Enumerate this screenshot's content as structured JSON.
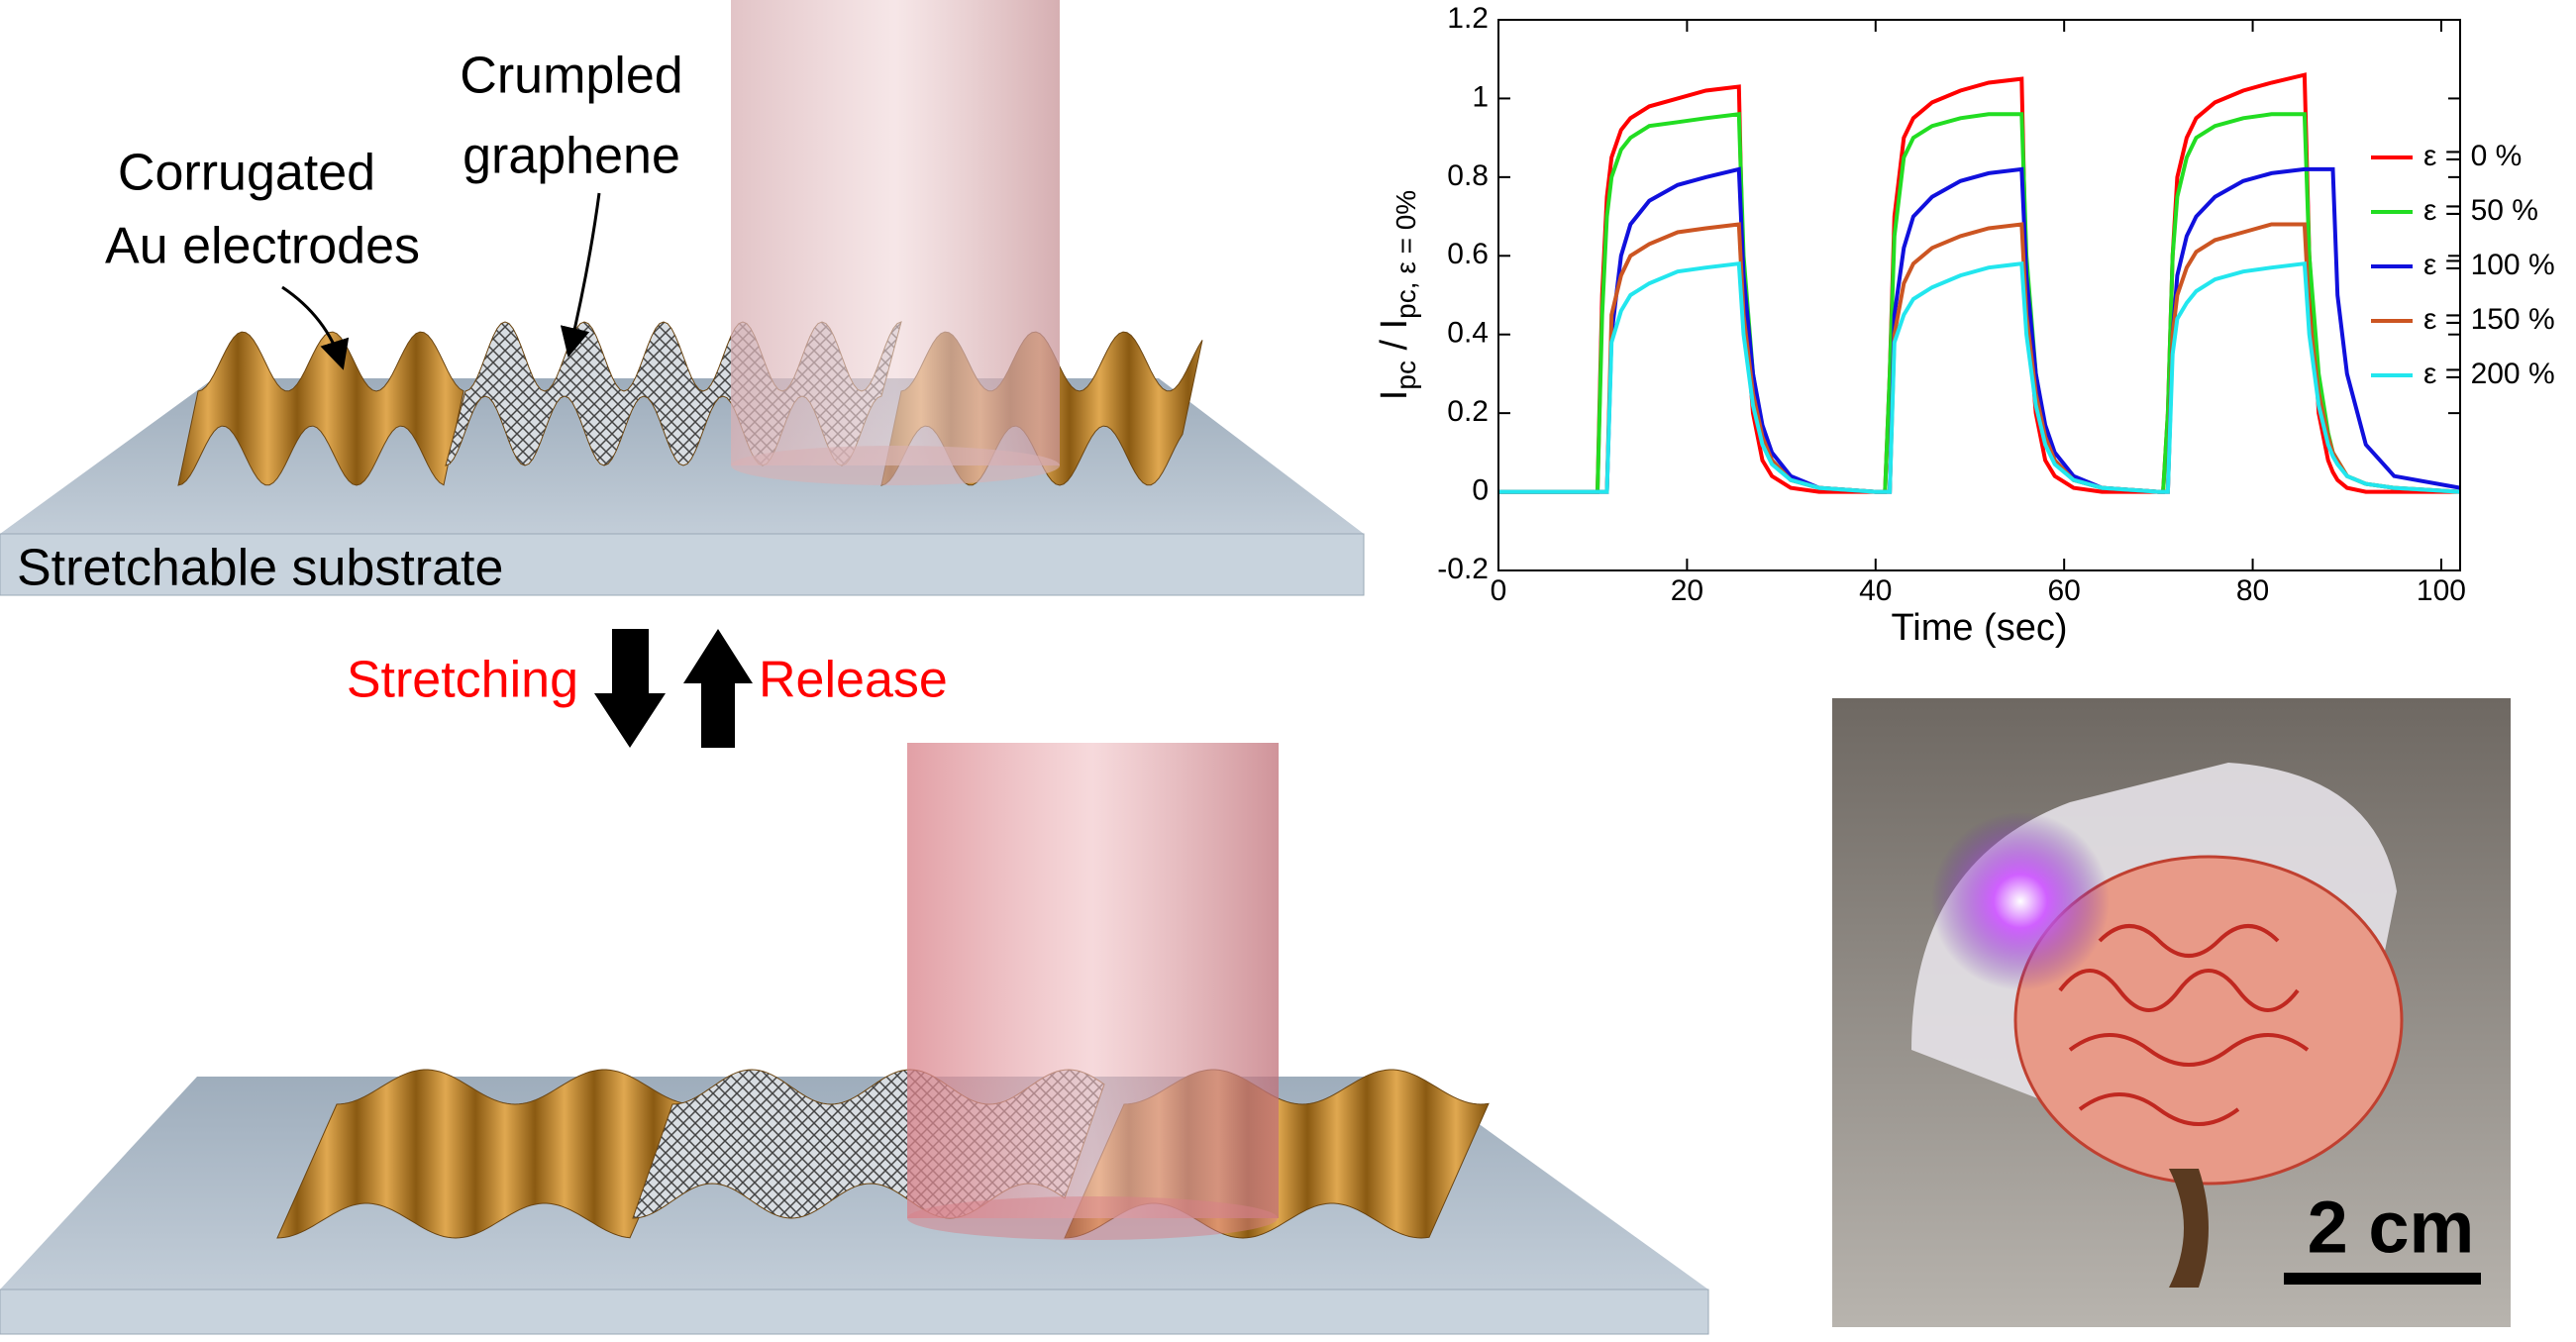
{
  "diagram": {
    "top": {
      "electrode_label": [
        "Corrugated",
        "Au electrodes"
      ],
      "graphene_label": [
        "Crumpled",
        "graphene"
      ],
      "substrate_label": "Stretchable substrate"
    },
    "transition": {
      "stretch": "Stretching",
      "release": "Release"
    }
  },
  "photo": {
    "scale_bar": "2 cm"
  },
  "chart_data": {
    "type": "line",
    "xlabel": "Time (sec)",
    "ylabel_parts": [
      "I",
      "pc",
      " / I",
      "pc, ε = 0%"
    ],
    "xlim": [
      0,
      102
    ],
    "ylim": [
      -0.2,
      1.2
    ],
    "xticks": [
      0,
      20,
      40,
      60,
      80,
      100
    ],
    "yticks": [
      -0.2,
      0,
      0.2,
      0.4,
      0.6,
      0.8,
      1,
      1.2
    ],
    "grid": false,
    "legend": "right",
    "x": [
      0,
      10,
      10.5,
      11,
      11.5,
      12,
      13,
      14,
      16,
      19,
      22,
      25.5,
      26,
      27,
      28,
      29,
      31,
      34,
      40,
      40.5,
      41,
      41.5,
      42,
      43,
      44,
      46,
      49,
      52,
      55.5,
      56,
      57,
      58,
      59,
      61,
      64,
      70,
      70.5,
      71,
      71.5,
      72,
      73,
      74,
      76,
      79,
      82,
      85.5,
      86,
      87,
      88,
      88.5,
      89,
      90,
      92,
      95,
      102
    ],
    "series": [
      {
        "name": "ε = 0 %",
        "color": "#ff0000",
        "values": [
          0,
          0,
          0,
          0.5,
          0.75,
          0.85,
          0.92,
          0.95,
          0.98,
          1.0,
          1.02,
          1.03,
          0.5,
          0.2,
          0.08,
          0.04,
          0.01,
          0,
          0,
          0,
          0,
          0.3,
          0.7,
          0.9,
          0.95,
          0.99,
          1.02,
          1.04,
          1.05,
          0.5,
          0.2,
          0.08,
          0.04,
          0.01,
          0,
          0,
          0,
          0.2,
          0.6,
          0.8,
          0.9,
          0.95,
          0.99,
          1.02,
          1.04,
          1.06,
          0.6,
          0.2,
          0.08,
          0.05,
          0.03,
          0.01,
          0,
          0,
          0
        ]
      },
      {
        "name": "ε = 50 %",
        "color": "#22dd22",
        "values": [
          0,
          0,
          0,
          0.45,
          0.7,
          0.8,
          0.87,
          0.9,
          0.93,
          0.94,
          0.95,
          0.96,
          0.6,
          0.3,
          0.15,
          0.08,
          0.03,
          0.01,
          0,
          0,
          0,
          0.3,
          0.65,
          0.85,
          0.9,
          0.93,
          0.95,
          0.96,
          0.96,
          0.6,
          0.3,
          0.15,
          0.08,
          0.03,
          0.01,
          0,
          0,
          0.2,
          0.6,
          0.75,
          0.85,
          0.9,
          0.93,
          0.95,
          0.96,
          0.96,
          0.6,
          0.3,
          0.15,
          0.1,
          0.08,
          0.04,
          0.02,
          0.01,
          0
        ]
      },
      {
        "name": "ε = 100 %",
        "color": "#1010dd",
        "values": [
          0,
          0,
          0,
          0,
          0,
          0.4,
          0.6,
          0.68,
          0.74,
          0.78,
          0.8,
          0.82,
          0.55,
          0.3,
          0.17,
          0.1,
          0.04,
          0.01,
          0,
          0,
          0,
          0,
          0.45,
          0.62,
          0.7,
          0.75,
          0.79,
          0.81,
          0.82,
          0.55,
          0.3,
          0.17,
          0.1,
          0.04,
          0.01,
          0,
          0,
          0,
          0.4,
          0.55,
          0.65,
          0.7,
          0.75,
          0.79,
          0.81,
          0.82,
          0.82,
          0.82,
          0.82,
          0.82,
          0.5,
          0.3,
          0.12,
          0.04,
          0.01
        ]
      },
      {
        "name": "ε = 150 %",
        "color": "#cc5522",
        "values": [
          0,
          0,
          0,
          0,
          0,
          0.45,
          0.55,
          0.6,
          0.63,
          0.66,
          0.67,
          0.68,
          0.45,
          0.25,
          0.14,
          0.08,
          0.03,
          0.01,
          0,
          0,
          0,
          0,
          0.4,
          0.53,
          0.58,
          0.62,
          0.65,
          0.67,
          0.68,
          0.45,
          0.25,
          0.14,
          0.08,
          0.03,
          0.01,
          0,
          0,
          0,
          0.4,
          0.5,
          0.57,
          0.61,
          0.64,
          0.66,
          0.68,
          0.68,
          0.45,
          0.25,
          0.14,
          0.1,
          0.08,
          0.04,
          0.02,
          0.01,
          0
        ]
      },
      {
        "name": "ε = 200 %",
        "color": "#22e6ee",
        "values": [
          0,
          0,
          0,
          0,
          0,
          0.38,
          0.46,
          0.5,
          0.53,
          0.56,
          0.57,
          0.58,
          0.4,
          0.22,
          0.12,
          0.07,
          0.03,
          0.01,
          0,
          0,
          0,
          0,
          0.38,
          0.45,
          0.49,
          0.52,
          0.55,
          0.57,
          0.58,
          0.4,
          0.22,
          0.12,
          0.07,
          0.03,
          0.01,
          0,
          0,
          0,
          0.35,
          0.44,
          0.48,
          0.51,
          0.54,
          0.56,
          0.57,
          0.58,
          0.4,
          0.22,
          0.12,
          0.09,
          0.07,
          0.04,
          0.02,
          0.01,
          0
        ]
      }
    ]
  }
}
